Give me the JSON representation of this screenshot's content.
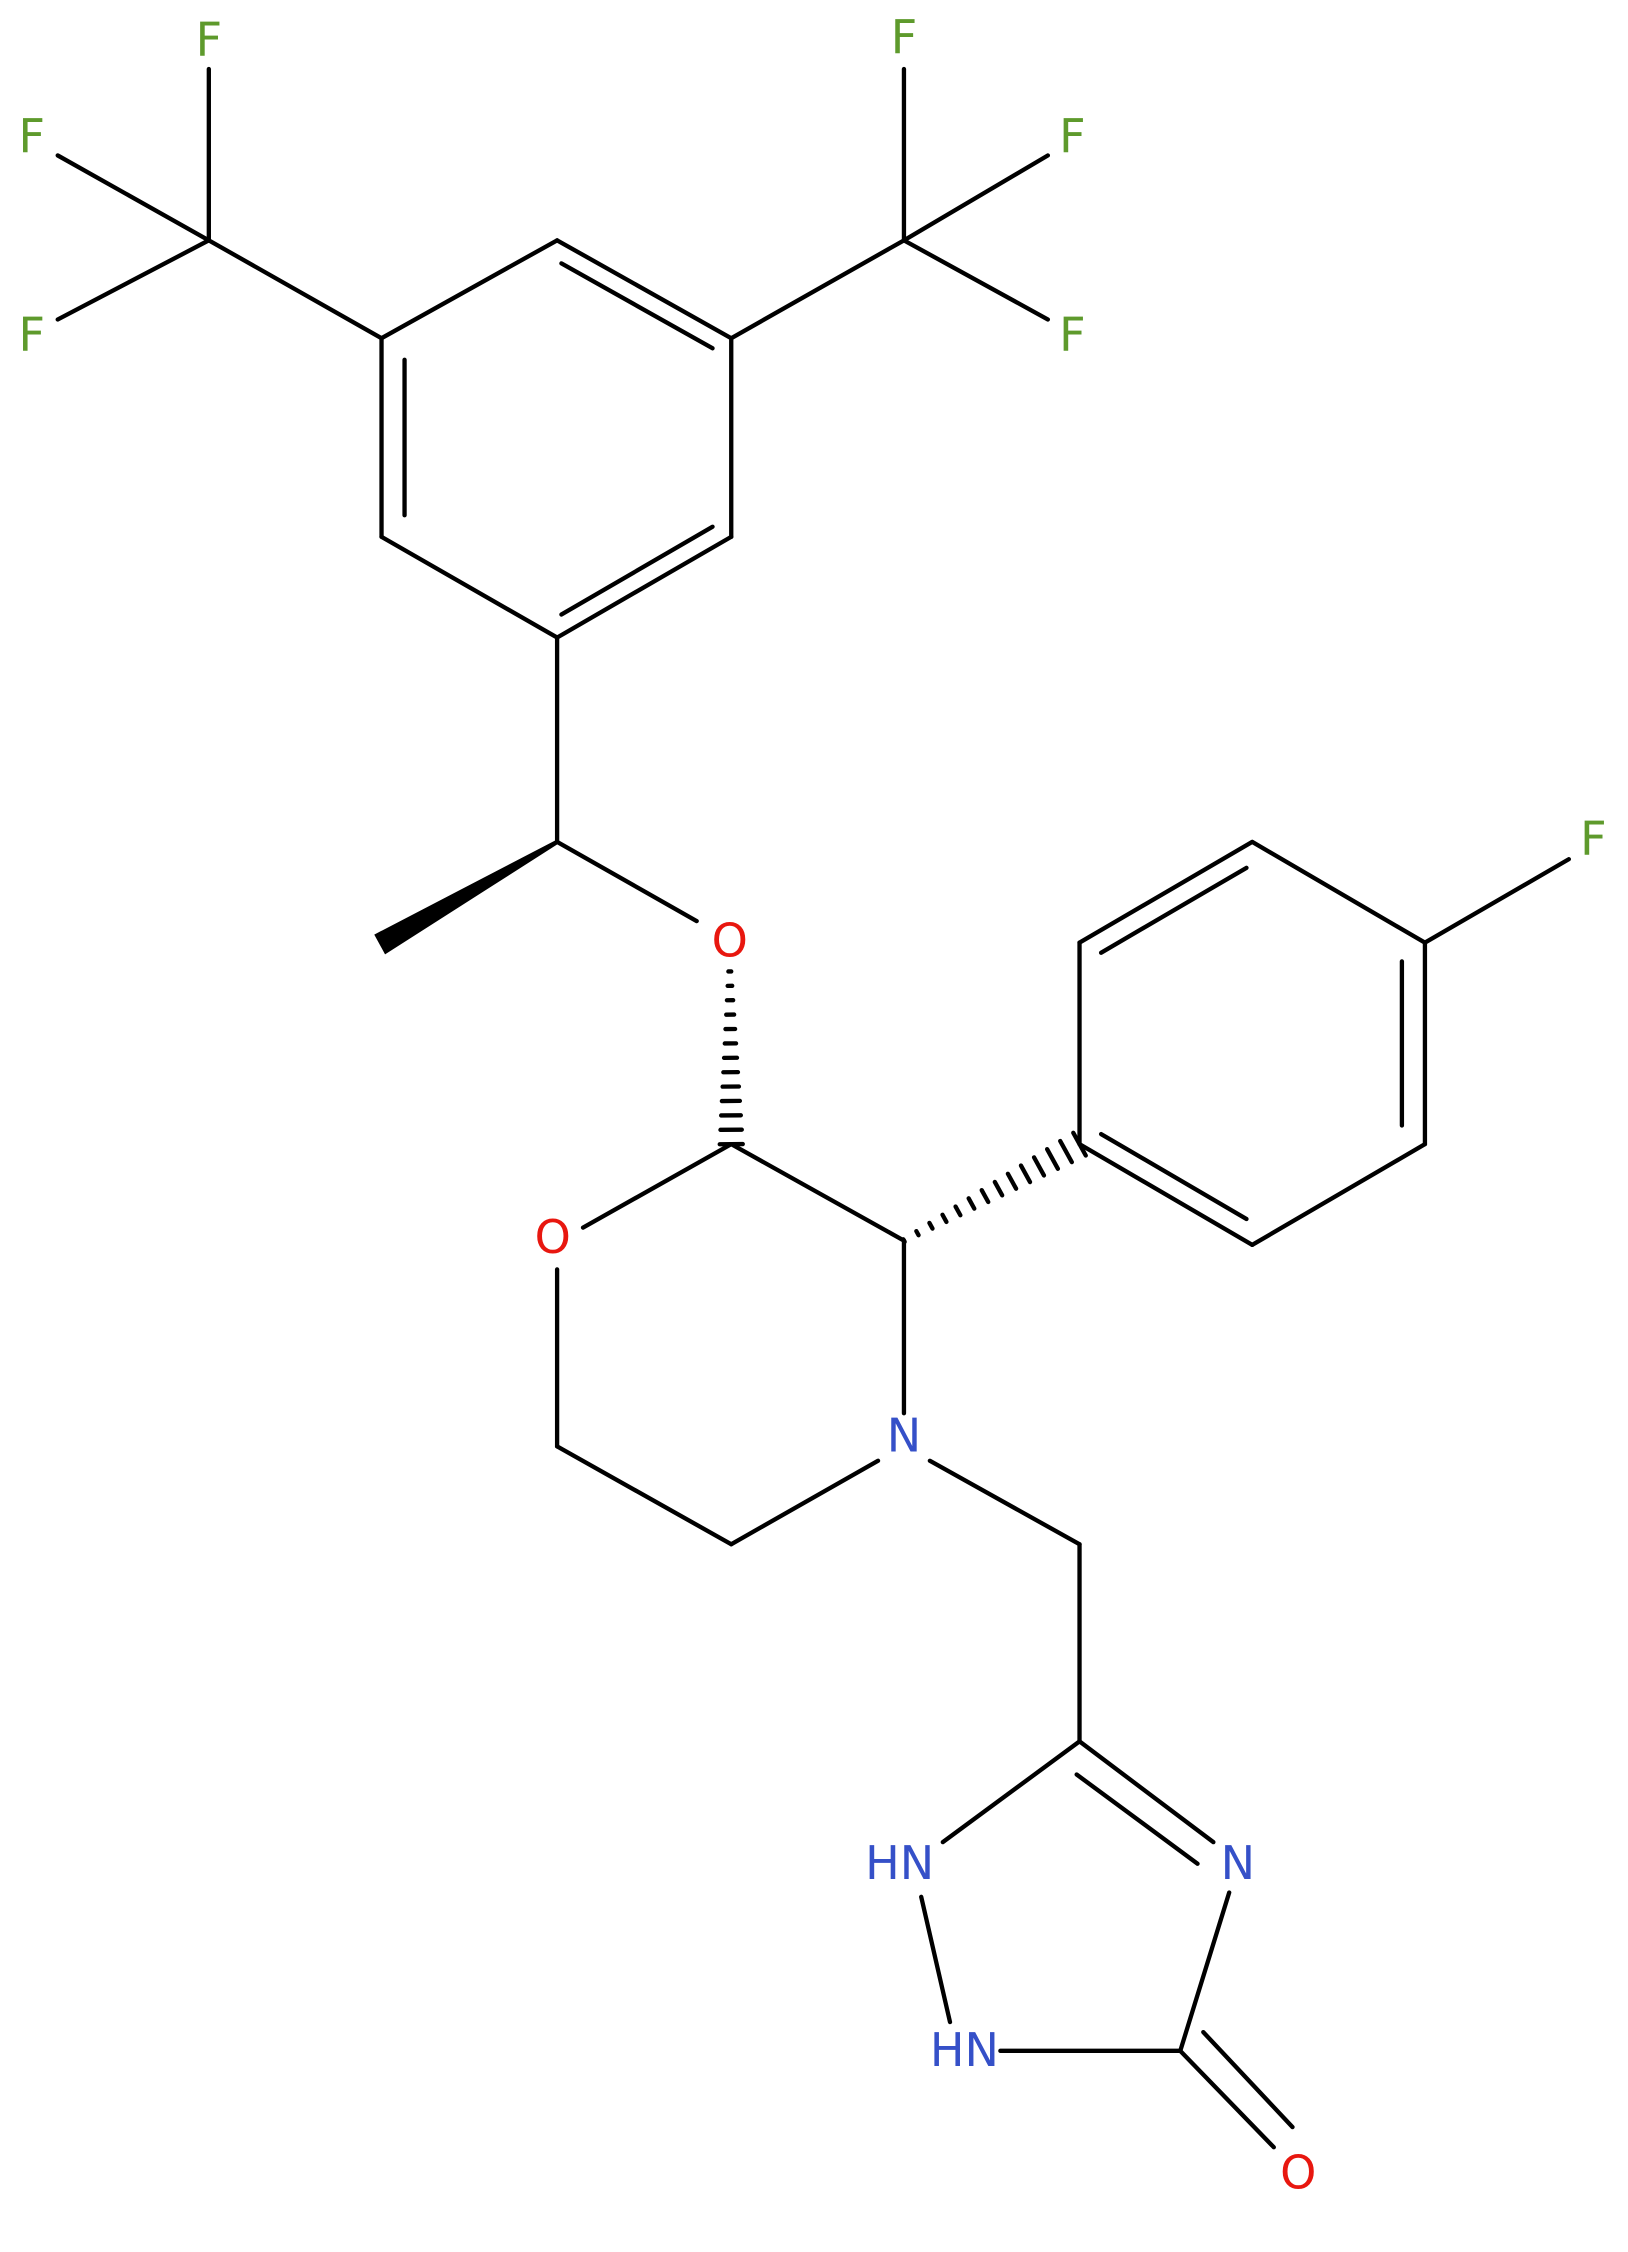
{
  "atoms": [
    "F",
    "F",
    "F",
    "F",
    "F",
    "F",
    "O",
    "O",
    "F",
    "N",
    "HN",
    "N",
    "HN",
    "O"
  ]
}
